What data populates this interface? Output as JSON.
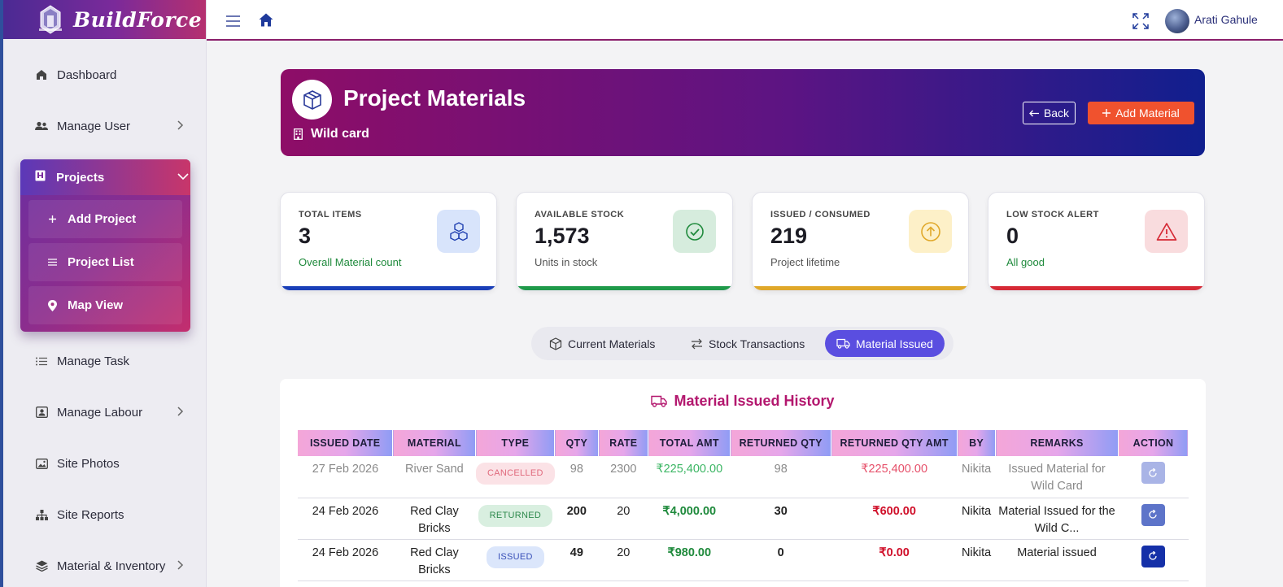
{
  "brand": {
    "name": "BuildForce"
  },
  "sidebar": {
    "items": [
      {
        "label": "Dashboard",
        "icon": "home-icon"
      },
      {
        "label": "Manage User",
        "icon": "users-icon"
      },
      {
        "label": "Projects",
        "icon": "projects-icon"
      },
      {
        "label": "Manage Task",
        "icon": "list-icon"
      },
      {
        "label": "Manage Labour",
        "icon": "labour-icon"
      },
      {
        "label": "Site Photos",
        "icon": "photo-icon"
      },
      {
        "label": "Site Reports",
        "icon": "sitemap-icon"
      },
      {
        "label": "Material & Inventory",
        "icon": "layers-icon"
      }
    ],
    "projects_sub": [
      {
        "label": "Add Project",
        "icon": "plus-icon"
      },
      {
        "label": "Project List",
        "icon": "list-icon"
      },
      {
        "label": "Map View",
        "icon": "map-pin-icon"
      }
    ]
  },
  "topbar": {
    "user_name": "Arati Gahule"
  },
  "header": {
    "title": "Project Materials",
    "subtitle": "Wild card",
    "back_label": "Back",
    "add_label": "Add Material"
  },
  "stats": [
    {
      "label": "TOTAL ITEMS",
      "value": "3",
      "note": "Overall Material count",
      "accent": "#1a3fb8"
    },
    {
      "label": "AVAILABLE STOCK",
      "value": "1,573",
      "note": "Units in stock",
      "accent": "#1f9a4a"
    },
    {
      "label": "ISSUED / CONSUMED",
      "value": "219",
      "note": "Project lifetime",
      "accent": "#e0a82a"
    },
    {
      "label": "LOW STOCK ALERT",
      "value": "0",
      "note": "All good",
      "accent": "#d62a36"
    }
  ],
  "tabs": [
    {
      "label": "Current Materials"
    },
    {
      "label": "Stock Transactions"
    },
    {
      "label": "Material Issued",
      "active": true
    }
  ],
  "history": {
    "title": "Material Issued History",
    "columns": [
      "ISSUED DATE",
      "MATERIAL",
      "TYPE",
      "QTY",
      "RATE",
      "TOTAL AMT",
      "RETURNED QTY",
      "RETURNED QTY AMT",
      "BY",
      "REMARKS",
      "ACTION"
    ],
    "rows": [
      {
        "date": "27 Feb 2026",
        "material": "River Sand",
        "type": "CANCELLED",
        "qty": "98",
        "rate": "2300",
        "total": "₹225,400.00",
        "returned_qty": "98",
        "returned_amt": "₹225,400.00",
        "by": "Nikita",
        "remarks": "Issued Material for Wild Card"
      },
      {
        "date": "24 Feb 2026",
        "material": "Red Clay Bricks",
        "type": "RETURNED",
        "qty": "200",
        "rate": "20",
        "total": "₹4,000.00",
        "returned_qty": "30",
        "returned_amt": "₹600.00",
        "by": "Nikita",
        "remarks": "Material Issued for the Wild C..."
      },
      {
        "date": "24 Feb 2026",
        "material": "Red Clay Bricks",
        "type": "ISSUED",
        "qty": "49",
        "rate": "20",
        "total": "₹980.00",
        "returned_qty": "0",
        "returned_amt": "₹0.00",
        "by": "Nikita",
        "remarks": "Material issued"
      }
    ]
  }
}
